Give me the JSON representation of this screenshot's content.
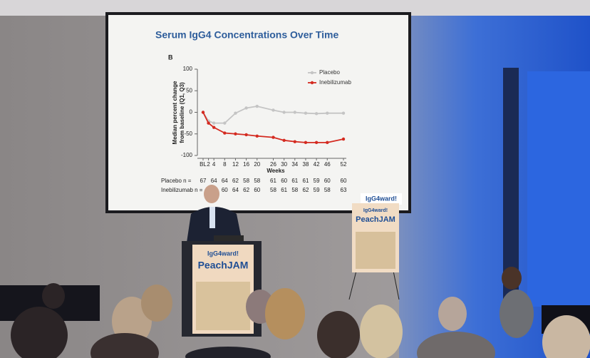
{
  "chart_data": {
    "type": "line",
    "title": "Serum IgG4 Concentrations Over Time",
    "panel_label": "B",
    "y_label": [
      "Median percent change",
      "from baseline (Q1, Q3)"
    ],
    "x_label": "Weeks",
    "x": [
      0,
      2,
      4,
      8,
      12,
      16,
      20,
      26,
      30,
      34,
      38,
      42,
      46,
      52
    ],
    "xlim": [
      0,
      52
    ],
    "xticks": [
      {
        "value": 0,
        "label": "BL"
      },
      2,
      4,
      8,
      12,
      16,
      20,
      26,
      30,
      34,
      38,
      42,
      46,
      52
    ],
    "ylim": [
      -100,
      100
    ],
    "yticks": [
      100,
      50,
      0,
      -50,
      -100
    ],
    "legend": "top-right",
    "series": [
      {
        "name": "Placebo",
        "color": "#c4c4c4",
        "values": [
          0,
          -20,
          -25,
          -25,
          -2,
          10,
          14,
          5,
          0,
          0,
          -2,
          -3,
          -2,
          -2
        ]
      },
      {
        "name": "Inebilizumab",
        "color": "#d42a20",
        "values": [
          0,
          -25,
          -35,
          -48,
          -50,
          -52,
          -55,
          -58,
          -65,
          -68,
          -70,
          -70,
          -70,
          -62
        ]
      }
    ],
    "n_rows": [
      {
        "label": "Placebo n =",
        "values": [
          "67",
          null,
          "64",
          "64",
          "62",
          "58",
          "58",
          "61",
          "60",
          "61",
          "61",
          "59",
          "60",
          "60"
        ]
      },
      {
        "label": "Inebilizumab n =",
        "values": [
          null,
          null,
          null,
          "60",
          "64",
          "62",
          "60",
          "58",
          "61",
          "58",
          "62",
          "59",
          "58",
          "63"
        ]
      }
    ]
  },
  "scene": {
    "slide_logo": "IgG4ward!",
    "podium_sign": {
      "logo": "IgG4ward!",
      "title": "PeachJAM"
    },
    "easel_sign": {
      "logo": "IgG4ward!",
      "title": "PeachJAM"
    }
  }
}
